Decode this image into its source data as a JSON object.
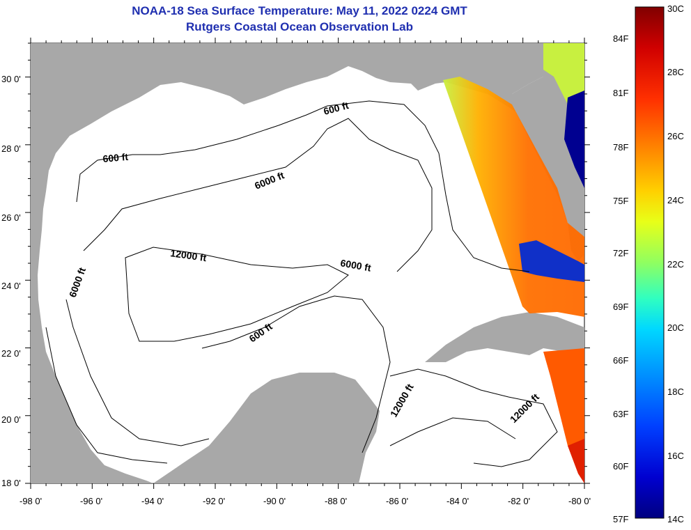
{
  "title": "NOAA-18 Sea Surface Temperature:  May 11, 2022 0224 GMT",
  "subtitle": "Rutgers Coastal Ocean Observation Lab",
  "axes": {
    "lat_labels": [
      "30 0'",
      "28 0'",
      "26 0'",
      "24 0'",
      "22 0'",
      "20 0'",
      "18 0'"
    ],
    "lon_labels": [
      "-98 0'",
      "-96 0'",
      "-94 0'",
      "-92 0'",
      "-90 0'",
      "-88 0'",
      "-86 0'",
      "-84 0'",
      "-82 0'",
      "-80 0'"
    ],
    "lat_range": [
      18,
      31
    ],
    "lon_range": [
      -98,
      -80
    ]
  },
  "contour_labels": [
    "600 ft",
    "6000 ft",
    "12000 ft",
    "6000 ft",
    "6000 ft",
    "600 ft",
    "12000 ft",
    "12000 ft"
  ],
  "colorbar": {
    "fahrenheit_labels": [
      "84F",
      "81F",
      "78F",
      "75F",
      "72F",
      "69F",
      "66F",
      "63F",
      "60F",
      "57F"
    ],
    "celsius_labels": [
      "30C",
      "28C",
      "26C",
      "24C",
      "22C",
      "20C",
      "18C",
      "16C",
      "14C"
    ],
    "stops": [
      "#800000",
      "#e00000",
      "#ff4000",
      "#ff9000",
      "#ffd000",
      "#e8ff18",
      "#90ff60",
      "#30ffc0",
      "#00d8ff",
      "#0090ff",
      "#0040ff",
      "#0000d0",
      "#000080"
    ]
  },
  "colors": {
    "land": "#a8a8a8",
    "ocean": "#ffffff",
    "title": "#1f2fb0"
  }
}
